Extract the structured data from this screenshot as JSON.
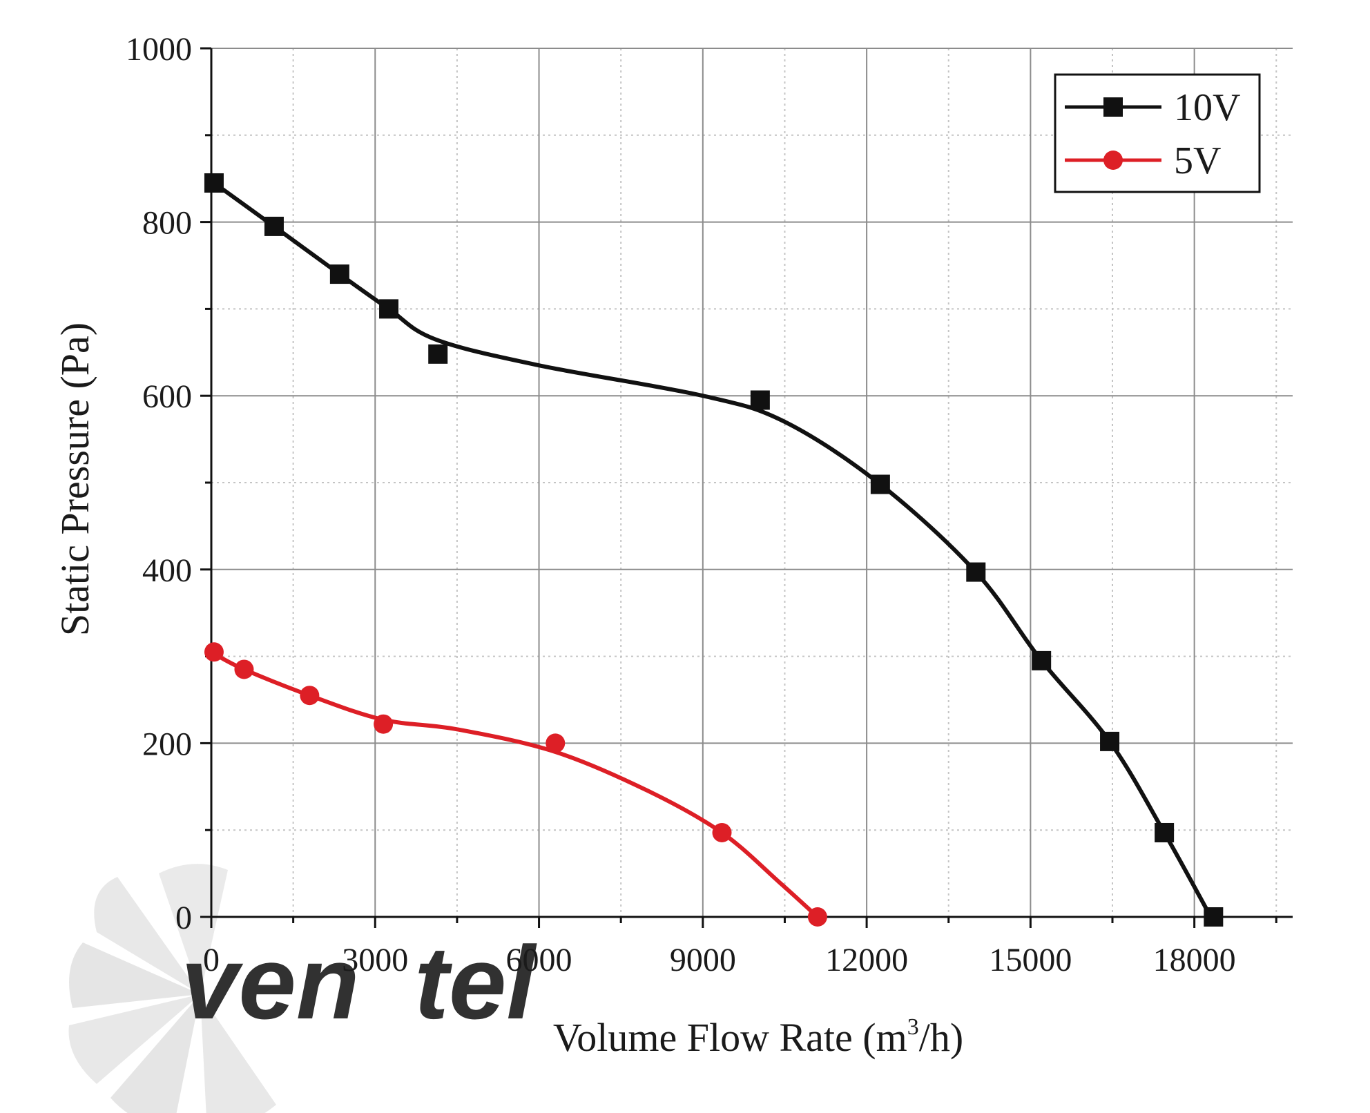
{
  "chart_data": {
    "type": "line",
    "title": "",
    "xlabel": "Volume Flow Rate (m",
    "xlabel_superscript": "3",
    "xlabel_suffix": "/h)",
    "ylabel": "Static Pressure (Pa)",
    "xlim": [
      0,
      19800
    ],
    "ylim": [
      0,
      1000
    ],
    "x_ticks": [
      0,
      3000,
      6000,
      9000,
      12000,
      15000,
      18000
    ],
    "x_tick_labels": [
      "0",
      "3000",
      "6000",
      "9000",
      "12000",
      "15000",
      "18000"
    ],
    "y_ticks": [
      0,
      200,
      400,
      600,
      800,
      1000
    ],
    "y_tick_labels": [
      "0",
      "200",
      "400",
      "600",
      "800",
      "1000"
    ],
    "grid": true,
    "legend_position": "top-right",
    "series": [
      {
        "name": "10V",
        "color": "#111111",
        "marker": "square",
        "points": [
          [
            50,
            845
          ],
          [
            1150,
            795
          ],
          [
            2350,
            740
          ],
          [
            3250,
            700
          ],
          [
            4150,
            648
          ],
          [
            10050,
            595
          ],
          [
            12250,
            498
          ],
          [
            14000,
            397
          ],
          [
            15200,
            295
          ],
          [
            16450,
            202
          ],
          [
            17450,
            97
          ],
          [
            18350,
            0
          ]
        ],
        "fit": [
          [
            50,
            845
          ],
          [
            1150,
            795
          ],
          [
            2350,
            740
          ],
          [
            3250,
            700
          ],
          [
            4100,
            665
          ],
          [
            6000,
            635
          ],
          [
            9000,
            600
          ],
          [
            10500,
            570
          ],
          [
            12250,
            498
          ],
          [
            14000,
            397
          ],
          [
            15200,
            295
          ],
          [
            16450,
            202
          ],
          [
            17450,
            97
          ],
          [
            18300,
            0
          ]
        ]
      },
      {
        "name": "5V",
        "color": "#dd1f26",
        "marker": "circle",
        "points": [
          [
            50,
            305
          ],
          [
            600,
            285
          ],
          [
            1800,
            255
          ],
          [
            3150,
            222
          ],
          [
            6300,
            200
          ],
          [
            9350,
            97
          ],
          [
            11100,
            0
          ]
        ],
        "fit": [
          [
            50,
            303
          ],
          [
            600,
            285
          ],
          [
            1800,
            255
          ],
          [
            3150,
            227
          ],
          [
            4500,
            216
          ],
          [
            6300,
            190
          ],
          [
            8000,
            145
          ],
          [
            9350,
            97
          ],
          [
            10400,
            40
          ],
          [
            11100,
            0
          ]
        ]
      }
    ]
  },
  "watermark": {
    "text_gray": "ven",
    "text_blue": "tel",
    "gray_color": "#c9c9c9",
    "blue_color": "#9ec3e6"
  }
}
